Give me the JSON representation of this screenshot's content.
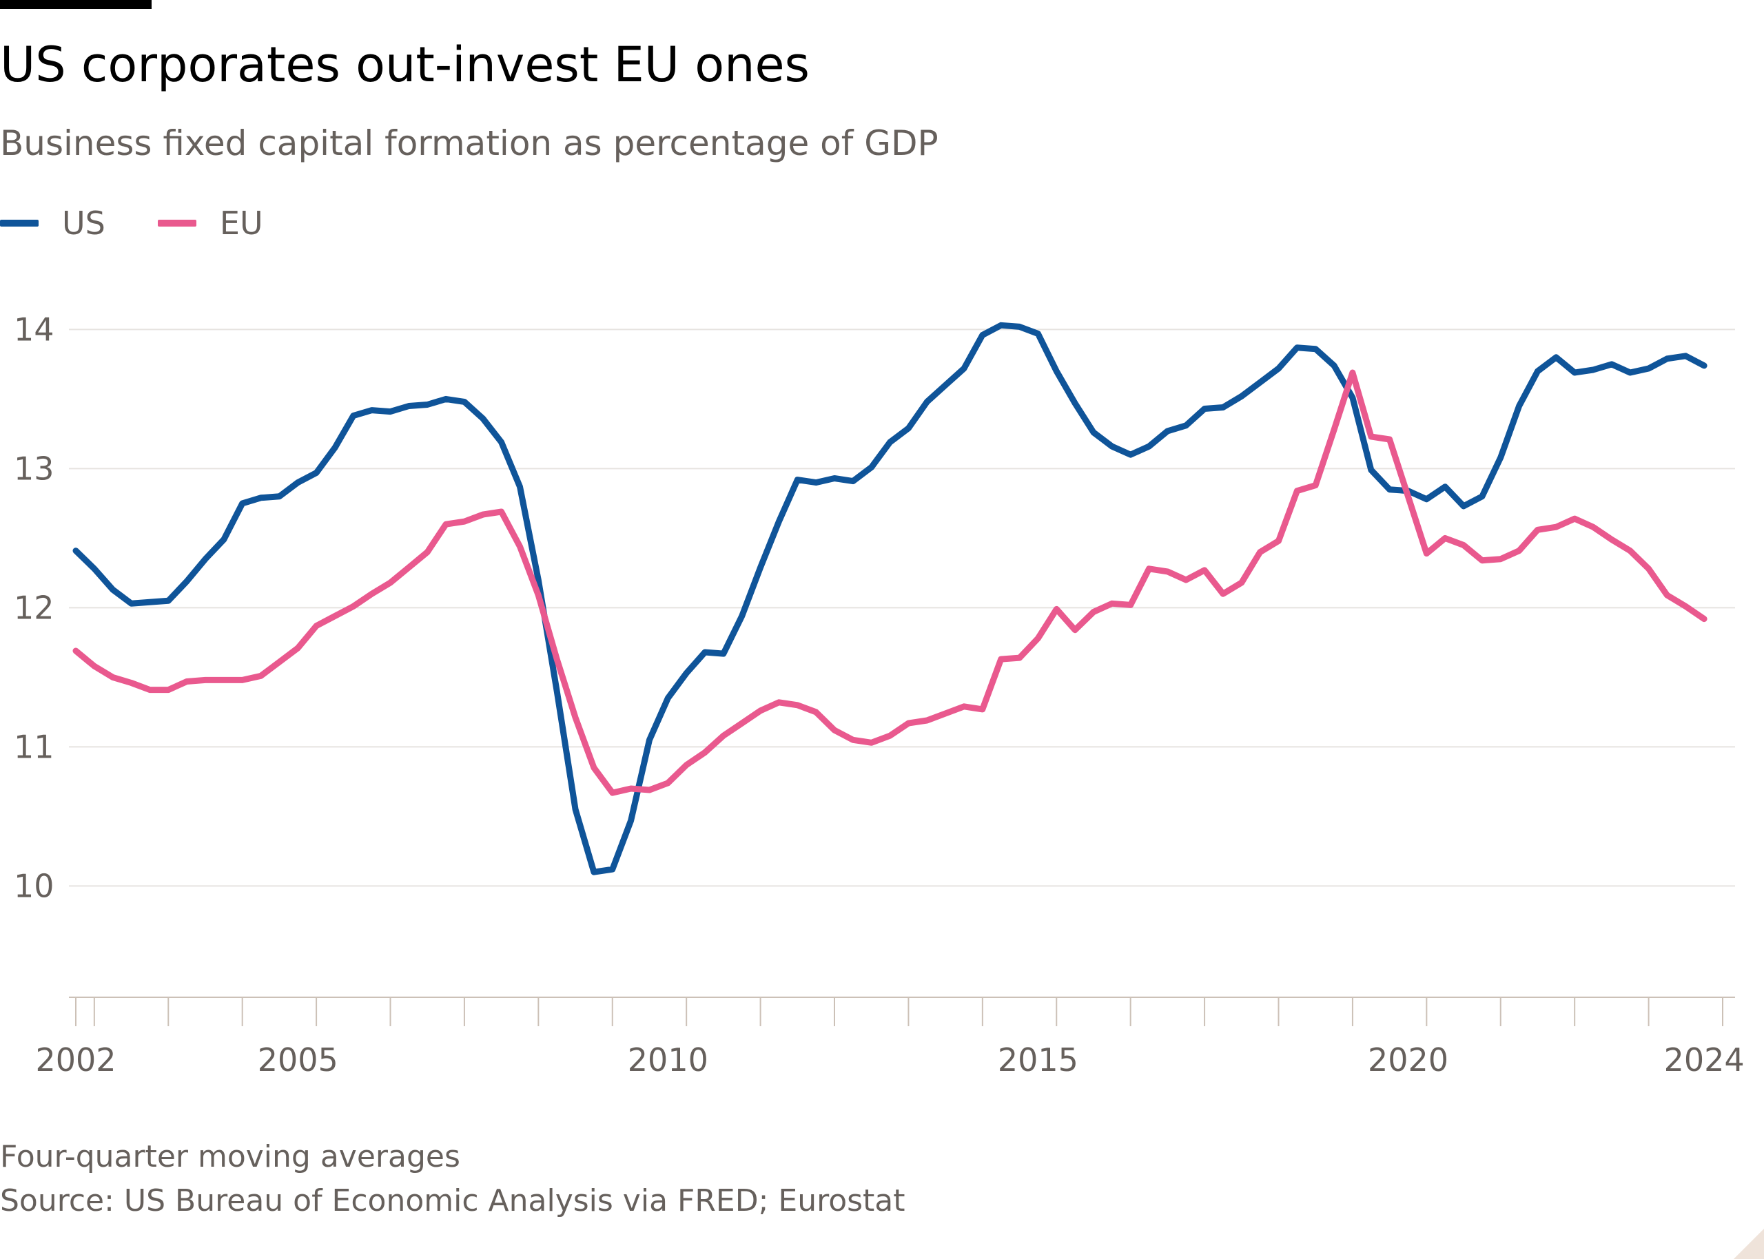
{
  "header": {
    "title": "US corporates out-invest EU ones",
    "subtitle": "Business fixed capital formation as percentage of GDP"
  },
  "footer": {
    "note": "Four-quarter moving averages",
    "source": "Source: US Bureau of Economic Analysis via FRED; Eurostat"
  },
  "chart_data": {
    "type": "line",
    "title": "US corporates out-invest EU ones",
    "subtitle": "Business fixed capital formation as percentage of GDP",
    "xlabel": "",
    "ylabel": "",
    "xlim": [
      2002.0,
      2024.25
    ],
    "ylim": [
      9.2,
      14.2
    ],
    "grid": true,
    "legend_position": "top-left",
    "y_ticks": [
      10,
      11,
      12,
      13,
      14
    ],
    "y_tick_labels": [
      "10",
      "11",
      "12",
      "13",
      "14"
    ],
    "x_tick_labels": [
      {
        "value": 2002,
        "label": "2002"
      },
      {
        "value": 2005,
        "label": "2005"
      },
      {
        "value": 2010,
        "label": "2010"
      },
      {
        "value": 2015,
        "label": "2015"
      },
      {
        "value": 2020,
        "label": "2020"
      },
      {
        "value": 2024,
        "label": "2024"
      }
    ],
    "x_minor_ticks": [
      2002,
      2002.25,
      2003.25,
      2004.25,
      2005.25,
      2006.25,
      2007.25,
      2008.25,
      2009.25,
      2010.25,
      2011.25,
      2012.25,
      2013.25,
      2014.25,
      2015.25,
      2016.25,
      2017.25,
      2018.25,
      2019.25,
      2020.25,
      2021.25,
      2022.25,
      2023.25,
      2024.25
    ],
    "x": [
      2002.0,
      2002.25,
      2002.5,
      2002.75,
      2003.0,
      2003.25,
      2003.5,
      2003.75,
      2004.0,
      2004.25,
      2004.5,
      2004.75,
      2005.0,
      2005.25,
      2005.5,
      2005.75,
      2006.0,
      2006.25,
      2006.5,
      2006.75,
      2007.0,
      2007.25,
      2007.5,
      2007.75,
      2008.0,
      2008.25,
      2008.5,
      2008.75,
      2009.0,
      2009.25,
      2009.5,
      2009.75,
      2010.0,
      2010.25,
      2010.5,
      2010.75,
      2011.0,
      2011.25,
      2011.5,
      2011.75,
      2012.0,
      2012.25,
      2012.5,
      2012.75,
      2013.0,
      2013.25,
      2013.5,
      2013.75,
      2014.0,
      2014.25,
      2014.5,
      2014.75,
      2015.0,
      2015.25,
      2015.5,
      2015.75,
      2016.0,
      2016.25,
      2016.5,
      2016.75,
      2017.0,
      2017.25,
      2017.5,
      2017.75,
      2018.0,
      2018.25,
      2018.5,
      2018.75,
      2019.0,
      2019.25,
      2019.5,
      2019.75,
      2020.0,
      2020.25,
      2020.5,
      2020.75,
      2021.0,
      2021.25,
      2021.5,
      2021.75,
      2022.0,
      2022.25,
      2022.5,
      2022.75,
      2023.0,
      2023.25,
      2023.5,
      2023.75,
      2024.0
    ],
    "series": [
      {
        "name": "US",
        "color": "#0f5499",
        "values": [
          12.41,
          12.28,
          12.13,
          12.03,
          12.04,
          12.05,
          12.19,
          12.35,
          12.49,
          12.75,
          12.79,
          12.8,
          12.9,
          12.97,
          13.15,
          13.38,
          13.42,
          13.41,
          13.45,
          13.46,
          13.5,
          13.48,
          13.36,
          13.19,
          12.87,
          12.2,
          11.4,
          10.55,
          10.1,
          10.12,
          10.47,
          11.05,
          11.35,
          11.53,
          11.68,
          11.67,
          11.94,
          12.29,
          12.62,
          12.92,
          12.9,
          12.93,
          12.91,
          13.01,
          13.19,
          13.29,
          13.48,
          13.6,
          13.72,
          13.96,
          14.03,
          14.02,
          13.97,
          13.7,
          13.47,
          13.26,
          13.16,
          13.1,
          13.16,
          13.27,
          13.31,
          13.43,
          13.44,
          13.52,
          13.62,
          13.72,
          13.87,
          13.86,
          13.74,
          13.51,
          12.99,
          12.85,
          12.84,
          12.78,
          12.87,
          12.73,
          12.8,
          13.08,
          13.45,
          13.7,
          13.8,
          13.69,
          13.71,
          13.75,
          13.69,
          13.72,
          13.79,
          13.81,
          13.74
        ]
      },
      {
        "name": "EU",
        "color": "#e9598e",
        "values": [
          11.69,
          11.58,
          11.5,
          11.46,
          11.41,
          11.41,
          11.47,
          11.48,
          11.48,
          11.48,
          11.51,
          11.61,
          11.71,
          11.87,
          11.94,
          12.01,
          12.1,
          12.18,
          12.29,
          12.4,
          12.6,
          12.62,
          12.67,
          12.69,
          12.44,
          12.09,
          11.63,
          11.21,
          10.85,
          10.67,
          10.7,
          10.69,
          10.74,
          10.87,
          10.96,
          11.08,
          11.17,
          11.26,
          11.32,
          11.3,
          11.25,
          11.12,
          11.05,
          11.03,
          11.08,
          11.17,
          11.19,
          11.24,
          11.29,
          11.27,
          11.63,
          11.64,
          11.78,
          11.99,
          11.84,
          11.97,
          12.03,
          12.02,
          12.28,
          12.26,
          12.2,
          12.27,
          12.1,
          12.18,
          12.4,
          12.48,
          12.84,
          12.88,
          13.28,
          13.69,
          13.23,
          13.21,
          12.8,
          12.39,
          12.5,
          12.45,
          12.34,
          12.35,
          12.41,
          12.56,
          12.58,
          12.64,
          12.58,
          12.49,
          12.41,
          12.28,
          12.09,
          12.01,
          11.92
        ]
      }
    ]
  }
}
